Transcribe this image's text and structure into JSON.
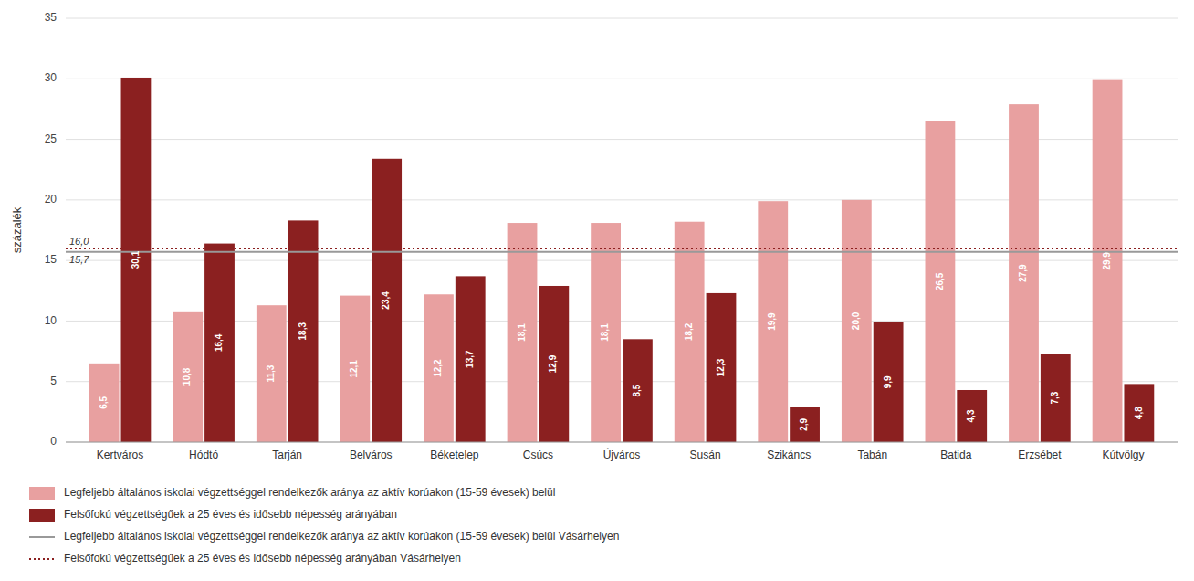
{
  "chart_data": {
    "type": "bar",
    "y_label": "százalék",
    "categories": [
      "Kertváros",
      "Hódtó",
      "Tarján",
      "Belváros",
      "Béketelep",
      "Csúcs",
      "Újváros",
      "Susán",
      "Szikáncs",
      "Tabán",
      "Batida",
      "Erzsébet",
      "Kútvölgy"
    ],
    "series": [
      {
        "name": "Legfeljebb általános iskolai végzettséggel rendelkezők aránya az aktív korúakon (15-59 évesek) belül",
        "color": "#e8a0a0",
        "values": [
          6.5,
          10.8,
          11.3,
          12.1,
          12.2,
          18.1,
          18.1,
          18.2,
          19.9,
          20.0,
          26.5,
          27.9,
          29.9
        ],
        "value_labels": [
          "6,5",
          "10,8",
          "11,3",
          "12,1",
          "12,2",
          "18,1",
          "18,1",
          "18,2",
          "19,9",
          "20,0",
          "26,5",
          "27,9",
          "29,9"
        ]
      },
      {
        "name": "Felsőfokú végzettségűek a 25 éves és idősebb népesség arányában",
        "color": "#8b2020",
        "values": [
          30.1,
          16.4,
          18.3,
          23.4,
          13.7,
          12.9,
          8.5,
          12.3,
          2.9,
          9.9,
          4.3,
          7.3,
          4.8
        ],
        "value_labels": [
          "30,1",
          "16,4",
          "18,3",
          "23,4",
          "13,7",
          "12,9",
          "8,5",
          "12,3",
          "2,9",
          "9,9",
          "4,3",
          "7,3",
          "4,8"
        ]
      }
    ],
    "reference_lines": [
      {
        "name": "Legfeljebb általános iskolai végzettséggel rendelkezők aránya az aktív korúakon (15-59 évesek) belül Vásárhelyen",
        "value": 15.7,
        "label": "15,7",
        "color": "#999999",
        "line_style": "solid"
      },
      {
        "name": "Felsőfokú végzettségűek a 25 éves és idősebb népesség arányában Vásárhelyen",
        "value": 16.0,
        "label": "16,0",
        "color": "#8b2020",
        "line_style": "dotted"
      }
    ],
    "ylim": [
      0,
      35
    ],
    "yticks": [
      0,
      5,
      10,
      15,
      20,
      25,
      30,
      35
    ],
    "grid": true,
    "data_labels": true,
    "legend": "bottom"
  }
}
